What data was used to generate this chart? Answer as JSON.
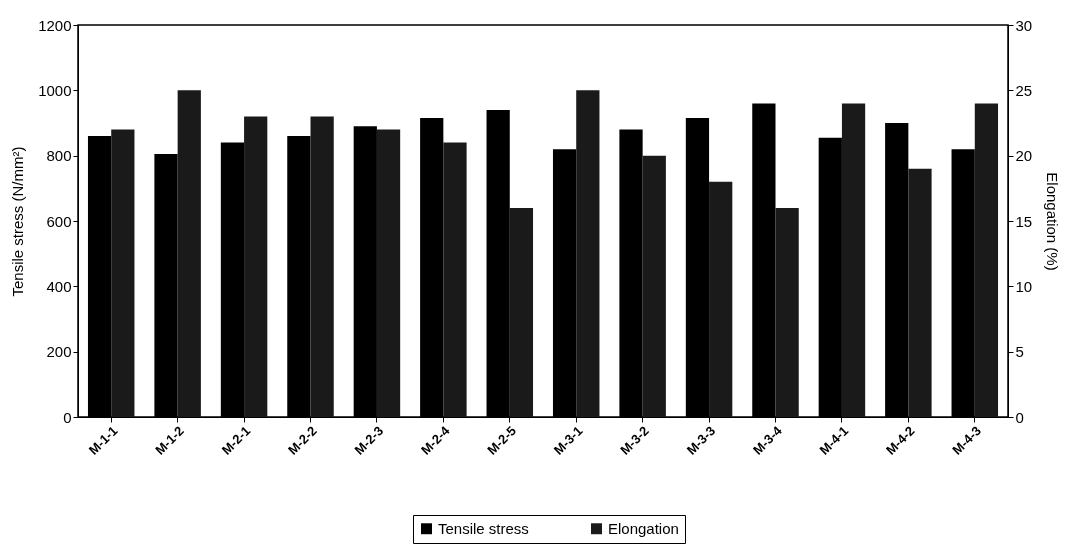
{
  "chart_data": {
    "type": "bar",
    "ylabel": "Tensile stress (N/mm²)",
    "y2label": "Elongation (%)",
    "categories": [
      "M-1-1",
      "M-1-2",
      "M-2-1",
      "M-2-2",
      "M-2-3",
      "M-2-4",
      "M-2-5",
      "M-3-1",
      "M-3-2",
      "M-3-3",
      "M-3-4",
      "M-4-1",
      "M-4-2",
      "M-4-3"
    ],
    "series": [
      {
        "name": "Tensile stress",
        "color": "#000000",
        "values": [
          860,
          805,
          840,
          860,
          890,
          915,
          940,
          820,
          880,
          915,
          960,
          855,
          900,
          820
        ]
      },
      {
        "name": "Elongation",
        "color": "#1a1a1a",
        "axis": "y2",
        "values": [
          22,
          25,
          23,
          23,
          22,
          21,
          16,
          25,
          20,
          18,
          16,
          24,
          19,
          24
        ]
      }
    ],
    "ylim": [
      0,
      1200
    ],
    "yticks": [
      0,
      200,
      400,
      600,
      800,
      1000,
      1200
    ],
    "y2lim": [
      0,
      30
    ],
    "y2ticks": [
      0,
      5,
      10,
      15,
      20,
      25,
      30
    ],
    "grid": false,
    "legend": "bottom"
  }
}
